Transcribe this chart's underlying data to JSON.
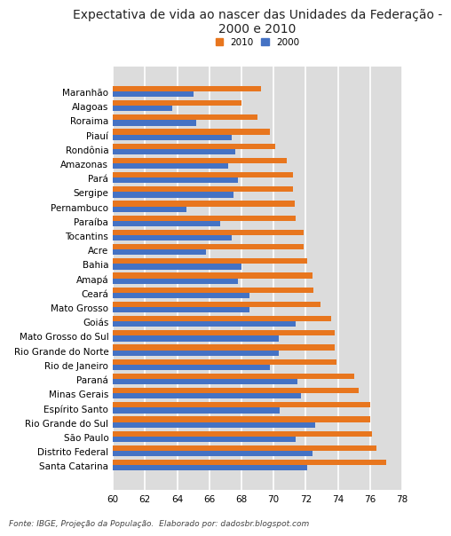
{
  "title": "Expectativa de vida ao nascer das Unidades da Federação -\n2000 e 2010",
  "footnote": "Fonte: IBGE, Projeção da População.  Elaborado por: dadosbr.blogspot.com",
  "states": [
    "Maranhão",
    "Alagoas",
    "Roraima",
    "Piauí",
    "Rondônia",
    "Amazonas",
    "Pará",
    "Sergipe",
    "Pernambuco",
    "Paraíba",
    "Tocantins",
    "Acre",
    "Bahia",
    "Amapá",
    "Ceará",
    "Mato Grosso",
    "Goiás",
    "Mato Grosso do Sul",
    "Rio Grande do Norte",
    "Rio de Janeiro",
    "Paraná",
    "Minas Gerais",
    "Espírito Santo",
    "Rio Grande do Sul",
    "São Paulo",
    "Distrito Federal",
    "Santa Catarina"
  ],
  "values_2010": [
    69.2,
    68.0,
    69.0,
    69.8,
    70.1,
    70.8,
    71.2,
    71.2,
    71.3,
    71.4,
    71.9,
    71.9,
    72.1,
    72.4,
    72.5,
    72.9,
    73.6,
    73.8,
    73.8,
    73.9,
    75.0,
    75.3,
    76.0,
    76.0,
    76.1,
    76.4,
    77.0
  ],
  "values_2000": [
    65.0,
    63.7,
    65.2,
    67.4,
    67.6,
    67.2,
    67.8,
    67.5,
    64.6,
    66.7,
    67.4,
    65.8,
    68.0,
    67.8,
    68.5,
    68.5,
    71.4,
    70.3,
    70.3,
    69.8,
    71.5,
    71.7,
    70.4,
    72.6,
    71.4,
    72.4,
    72.1
  ],
  "color_2010": "#E8761E",
  "color_2000": "#4472C4",
  "xlim": [
    60,
    78
  ],
  "xticks": [
    60,
    62,
    64,
    66,
    68,
    70,
    72,
    74,
    76,
    78
  ],
  "background_color": "#ffffff",
  "plot_bg_color": "#DCDCDC",
  "grid_color": "#ffffff",
  "title_fontsize": 10,
  "tick_fontsize": 7.5,
  "label_fontsize": 7.5,
  "footnote_fontsize": 6.5
}
